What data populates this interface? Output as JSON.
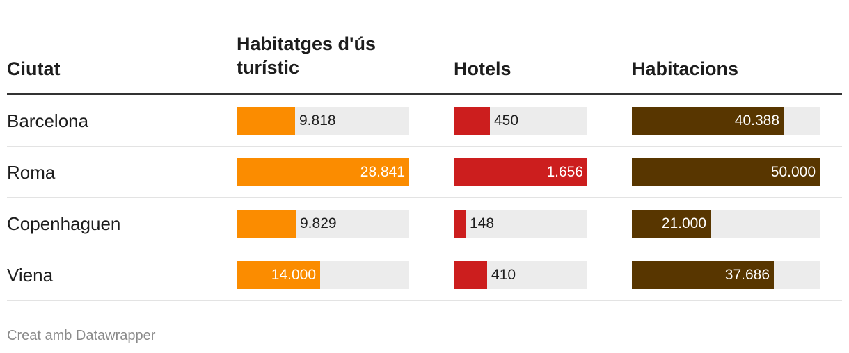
{
  "chart_data": {
    "type": "table",
    "columns": [
      {
        "key": "city",
        "label": "Ciutat"
      },
      {
        "key": "tourist_housing",
        "label": "Habitatges d'ús turístic",
        "color": "#fb8c00",
        "max": 28841
      },
      {
        "key": "hotels",
        "label": "Hotels",
        "color": "#cc1e1e",
        "max": 1656
      },
      {
        "key": "rooms",
        "label": "Habitacions",
        "color": "#583600",
        "max": 50000
      }
    ],
    "rows": [
      {
        "city": "Barcelona",
        "tourist_housing": 9818,
        "hotels": 450,
        "rooms": 40388,
        "labels": {
          "tourist_housing": "9.818",
          "hotels": "450",
          "rooms": "40.388"
        }
      },
      {
        "city": "Roma",
        "tourist_housing": 28841,
        "hotels": 1656,
        "rooms": 50000,
        "labels": {
          "tourist_housing": "28.841",
          "hotels": "1.656",
          "rooms": "50.000"
        }
      },
      {
        "city": "Copenhaguen",
        "tourist_housing": 9829,
        "hotels": 148,
        "rooms": 21000,
        "labels": {
          "tourist_housing": "9.829",
          "hotels": "148",
          "rooms": "21.000"
        }
      },
      {
        "city": "Viena",
        "tourist_housing": 14000,
        "hotels": 410,
        "rooms": 37686,
        "labels": {
          "tourist_housing": "14.000",
          "hotels": "410",
          "rooms": "37.686"
        }
      }
    ]
  },
  "footer": "Creat amb Datawrapper"
}
